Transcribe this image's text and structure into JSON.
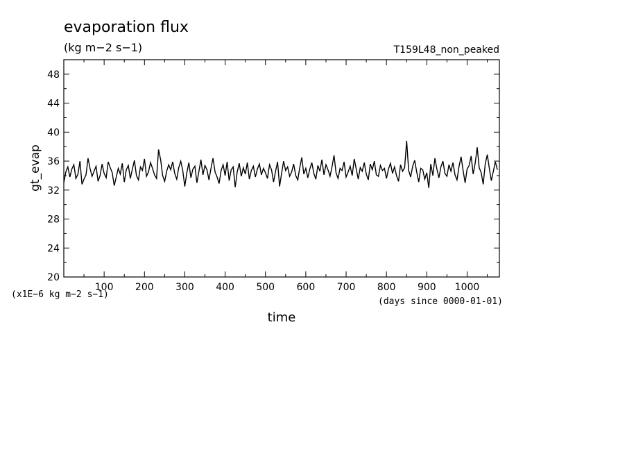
{
  "chart_data": {
    "type": "line",
    "title": "evaporation flux",
    "subtitle": "(kg m−2 s−1)",
    "run_label": "T159L48_non_peaked",
    "ylabel": "gt_evap",
    "xlabel": "time",
    "y_scale_note": "(x1E−6 kg m−2 s−1)",
    "x_unit_note": "(days since 0000-01-01)",
    "xlim": [
      0,
      1080
    ],
    "ylim": [
      20,
      50
    ],
    "x_ticks": [
      100,
      200,
      300,
      400,
      500,
      600,
      700,
      800,
      900,
      1000
    ],
    "x_tick_labels": [
      "100",
      "200",
      "300",
      "400",
      "500",
      "600",
      "700",
      "800",
      "900",
      "1000"
    ],
    "y_ticks": [
      20,
      24,
      28,
      32,
      36,
      40,
      44,
      48
    ],
    "y_tick_labels": [
      "20",
      "24",
      "28",
      "32",
      "36",
      "40",
      "44",
      "48"
    ],
    "grid": false,
    "series": [
      {
        "x": [
          0,
          5,
          10,
          15,
          20,
          25,
          30,
          35,
          40,
          45,
          50,
          55,
          60,
          65,
          70,
          75,
          80,
          85,
          90,
          95,
          100,
          105,
          110,
          115,
          120,
          125,
          130,
          135,
          140,
          145,
          150,
          155,
          160,
          165,
          170,
          175,
          180,
          185,
          190,
          195,
          200,
          205,
          210,
          215,
          220,
          225,
          230,
          235,
          240,
          245,
          250,
          255,
          260,
          265,
          270,
          275,
          280,
          285,
          290,
          295,
          300,
          305,
          310,
          315,
          320,
          325,
          330,
          335,
          340,
          345,
          350,
          355,
          360,
          365,
          370,
          375,
          380,
          385,
          390,
          395,
          400,
          405,
          410,
          415,
          420,
          425,
          430,
          435,
          440,
          445,
          450,
          455,
          460,
          465,
          470,
          475,
          480,
          485,
          490,
          495,
          500,
          505,
          510,
          515,
          520,
          525,
          530,
          535,
          540,
          545,
          550,
          555,
          560,
          565,
          570,
          575,
          580,
          585,
          590,
          595,
          600,
          605,
          610,
          615,
          620,
          625,
          630,
          635,
          640,
          645,
          650,
          655,
          660,
          665,
          670,
          675,
          680,
          685,
          690,
          695,
          700,
          705,
          710,
          715,
          720,
          725,
          730,
          735,
          740,
          745,
          750,
          755,
          760,
          765,
          770,
          775,
          780,
          785,
          790,
          795,
          800,
          805,
          810,
          815,
          820,
          825,
          830,
          835,
          840,
          845,
          850,
          855,
          860,
          865,
          870,
          875,
          880,
          885,
          890,
          895,
          900,
          905,
          910,
          915,
          920,
          925,
          930,
          935,
          940,
          945,
          950,
          955,
          960,
          965,
          970,
          975,
          980,
          985,
          990,
          995,
          1000,
          1005,
          1010,
          1015,
          1020,
          1025,
          1030,
          1035,
          1040,
          1045,
          1050,
          1055,
          1060,
          1065,
          1070,
          1075
        ],
        "y": [
          33.0,
          34.5,
          35.2,
          33.8,
          34.9,
          35.5,
          33.6,
          34.2,
          36.0,
          32.8,
          33.5,
          34.1,
          36.4,
          35.0,
          33.9,
          34.6,
          35.3,
          33.2,
          34.0,
          35.6,
          34.3,
          33.7,
          35.9,
          35.1,
          34.4,
          32.6,
          33.8,
          35.0,
          34.2,
          35.7,
          33.1,
          34.8,
          35.4,
          33.6,
          34.9,
          36.1,
          34.0,
          33.4,
          35.2,
          34.7,
          36.3,
          33.9,
          34.5,
          35.8,
          35.0,
          34.1,
          33.6,
          37.6,
          36.2,
          34.0,
          33.2,
          34.6,
          35.5,
          34.8,
          35.9,
          34.3,
          33.5,
          35.1,
          36.0,
          34.7,
          32.5,
          34.4,
          35.8,
          33.7,
          34.9,
          35.3,
          33.0,
          34.6,
          36.2,
          34.1,
          35.4,
          34.8,
          33.4,
          35.0,
          36.4,
          34.5,
          33.8,
          32.9,
          34.7,
          35.5,
          34.0,
          35.9,
          33.3,
          34.8,
          35.2,
          32.4,
          34.5,
          35.7,
          33.9,
          35.1,
          34.2,
          35.8,
          33.5,
          34.7,
          35.3,
          33.8,
          34.9,
          35.6,
          34.1,
          35.0,
          34.4,
          33.6,
          35.5,
          34.8,
          33.1,
          34.6,
          35.9,
          32.5,
          34.3,
          36.0,
          34.7,
          35.2,
          33.9,
          34.5,
          35.6,
          34.0,
          33.4,
          35.1,
          36.5,
          34.2,
          35.0,
          33.7,
          34.9,
          35.8,
          34.3,
          33.5,
          35.4,
          34.6,
          36.2,
          34.1,
          35.5,
          34.8,
          33.9,
          35.2,
          36.8,
          34.4,
          33.6,
          35.0,
          34.7,
          35.9,
          33.8,
          34.5,
          35.3,
          34.0,
          36.3,
          34.9,
          33.5,
          35.1,
          34.6,
          35.8,
          34.2,
          33.4,
          35.6,
          34.8,
          36.0,
          34.1,
          33.9,
          35.4,
          34.7,
          35.0,
          33.6,
          34.9,
          35.7,
          34.3,
          35.2,
          34.0,
          33.2,
          35.5,
          34.6,
          35.1,
          38.8,
          34.7,
          33.8,
          35.3,
          36.1,
          34.5,
          33.1,
          35.0,
          34.8,
          33.5,
          34.4,
          32.3,
          35.6,
          34.0,
          36.4,
          34.9,
          33.7,
          35.2,
          36.0,
          34.3,
          33.9,
          35.5,
          34.6,
          35.8,
          34.1,
          33.4,
          35.3,
          36.6,
          34.7,
          33.0,
          34.9,
          35.4,
          36.7,
          34.2,
          35.7,
          37.9,
          35.1,
          34.4,
          32.8,
          35.6,
          36.9,
          35.0,
          33.3,
          34.6,
          35.9,
          34.8
        ],
        "color": "#000000"
      }
    ]
  }
}
